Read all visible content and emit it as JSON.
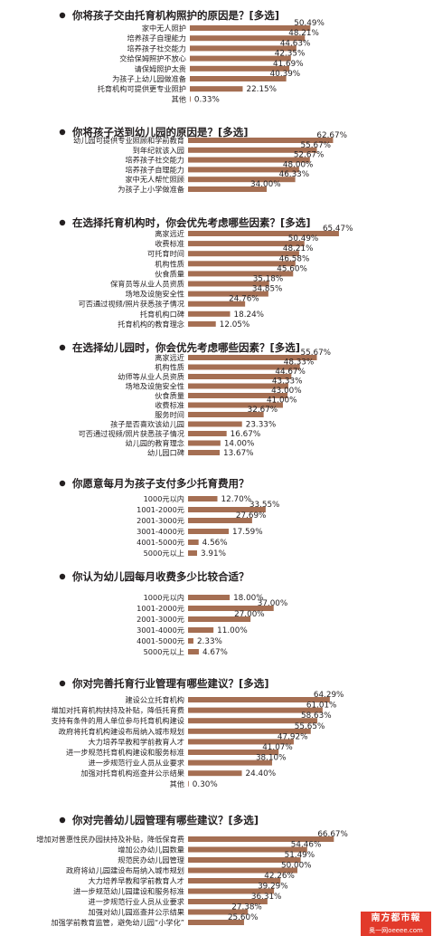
{
  "brand": {
    "name": "南方都市報",
    "site": "奥一网oeeee.com"
  },
  "colors": {
    "bar": "#a56f53",
    "title_dot": "#231f20",
    "text": "#231f20"
  },
  "chart_data": [
    {
      "type": "bar",
      "title": "你将孩子交由托育机构照护的原因是？[多选]",
      "categories": [
        "家中无人照护",
        "培养孩子自理能力",
        "培养孩子社交能力",
        "交给保姆照护不放心",
        "请保姆照护太贵",
        "为孩子上幼儿园做准备",
        "托育机构可提供更专业照护",
        "其他"
      ],
      "values": [
        50.49,
        48.21,
        44.63,
        42.35,
        41.69,
        40.39,
        22.15,
        0.33
      ],
      "labels": [
        "50.49%",
        "48.21%",
        "44.63%",
        "42.35%",
        "41.69%",
        "40.39%",
        "22.15%",
        "0.33%"
      ]
    },
    {
      "type": "bar",
      "title": "你将孩子送到幼儿园的原因是？[多选]",
      "categories": [
        "幼儿园可提供专业照顾和学前教育",
        "到年纪就该入园",
        "培养孩子社交能力",
        "培养孩子自理能力",
        "家中无人帮忙照顾",
        "为孩子上小学做准备"
      ],
      "values": [
        62.67,
        55.67,
        52.67,
        48.0,
        46.33,
        34.0
      ],
      "labels": [
        "62.67%",
        "55.67%",
        "52.67%",
        "48.00%",
        "46.33%",
        "34.00%"
      ]
    },
    {
      "type": "bar",
      "title": "在选择托育机构时，你会优先考虑哪些因素？[多选]",
      "categories": [
        "离家远近",
        "收费标准",
        "可托育时间",
        "机构性质",
        "伙食质量",
        "保育员等从业人员资质",
        "场地及设施安全性",
        "可否通过视频/照片获悉孩子情况",
        "托育机构口碑",
        "托育机构的教育理念"
      ],
      "values": [
        65.47,
        50.49,
        48.21,
        46.58,
        45.6,
        35.18,
        34.85,
        24.76,
        18.24,
        12.05
      ],
      "labels": [
        "65.47%",
        "50.49%",
        "48.21%",
        "46.58%",
        "45.60%",
        "35.18%",
        "34.85%",
        "24.76%",
        "18.24%",
        "12.05%"
      ]
    },
    {
      "type": "bar",
      "title": "在选择幼儿园时，你会优先考虑哪些因素？[多选]",
      "categories": [
        "离家远近",
        "机构性质",
        "幼师等从业人员资质",
        "场地及设施安全性",
        "伙食质量",
        "收费标准",
        "服务时间",
        "孩子是否喜欢该幼儿园",
        "可否通过视频/照片获悉孩子情况",
        "幼儿园的教育理念",
        "幼儿园口碑"
      ],
      "values": [
        55.67,
        48.33,
        44.67,
        43.33,
        43.0,
        41.0,
        32.67,
        23.33,
        16.67,
        14.0,
        13.67
      ],
      "labels": [
        "55.67%",
        "48.33%",
        "44.67%",
        "43.33%",
        "43.00%",
        "41.00%",
        "32.67%",
        "23.33%",
        "16.67%",
        "14.00%",
        "13.67%"
      ]
    },
    {
      "type": "bar",
      "title": "你愿意每月为孩子支付多少托育费用？",
      "categories": [
        "1000元以内",
        "1001-2000元",
        "2001-3000元",
        "3001-4000元",
        "4001-5000元",
        "5000元以上"
      ],
      "values": [
        12.7,
        33.55,
        27.69,
        17.59,
        4.56,
        3.91
      ],
      "labels": [
        "12.70%",
        "33.55%",
        "27.69%",
        "17.59%",
        "4.56%",
        "3.91%"
      ]
    },
    {
      "type": "bar",
      "title": "你认为幼儿园每月收费多少比较合适？",
      "categories": [
        "1000元以内",
        "1001-2000元",
        "2001-3000元",
        "3001-4000元",
        "4001-5000元",
        "5000元以上"
      ],
      "values": [
        18.0,
        37.0,
        27.0,
        11.0,
        2.33,
        4.67
      ],
      "labels": [
        "18.00%",
        "37.00%",
        "27.00%",
        "11.00%",
        "2.33%",
        "4.67%"
      ]
    },
    {
      "type": "bar",
      "title": "你对完善托育行业管理有哪些建议？[多选]",
      "categories": [
        "建设公立托育机构",
        "增加对托育机构扶持及补贴，降低托育费",
        "支持有条件的用人单位参与托育机构建设",
        "政府将托育机构建设布局纳入城市规划",
        "大力培养早教和学前教育人才",
        "进一步规范托育机构建设和服务标准",
        "进一步规范行业人员从业要求",
        "加强对托育机构巡查并公示结果",
        "其他"
      ],
      "values": [
        64.29,
        61.01,
        58.63,
        55.65,
        47.92,
        41.07,
        38.1,
        24.4,
        0.3
      ],
      "labels": [
        "64.29%",
        "61.01%",
        "58.63%",
        "55.65%",
        "47.92%",
        "41.07%",
        "38.10%",
        "24.40%",
        "0.30%"
      ]
    },
    {
      "type": "bar",
      "title": "你对完善幼儿园管理有哪些建议？[多选]",
      "categories": [
        "增加对普惠性民办园扶持及补贴，降低保育费",
        "增加公办幼儿园数量",
        "规范民办幼儿园管理",
        "政府将幼儿园建设布局纳入城市规划",
        "大力培养早教和学前教育人才",
        "进一步规范幼儿园建设和服务标准",
        "进一步规范行业人员从业要求",
        "加强对幼儿园巡查并公示结果",
        "加强学前教育监管，避免幼儿园“小学化”"
      ],
      "values": [
        66.67,
        54.46,
        51.49,
        50.0,
        42.26,
        39.29,
        36.31,
        27.38,
        25.6
      ],
      "labels": [
        "66.67%",
        "54.46%",
        "51.49%",
        "50.00%",
        "42.26%",
        "39.29%",
        "36.31%",
        "27.38%",
        "25.60%"
      ]
    }
  ]
}
